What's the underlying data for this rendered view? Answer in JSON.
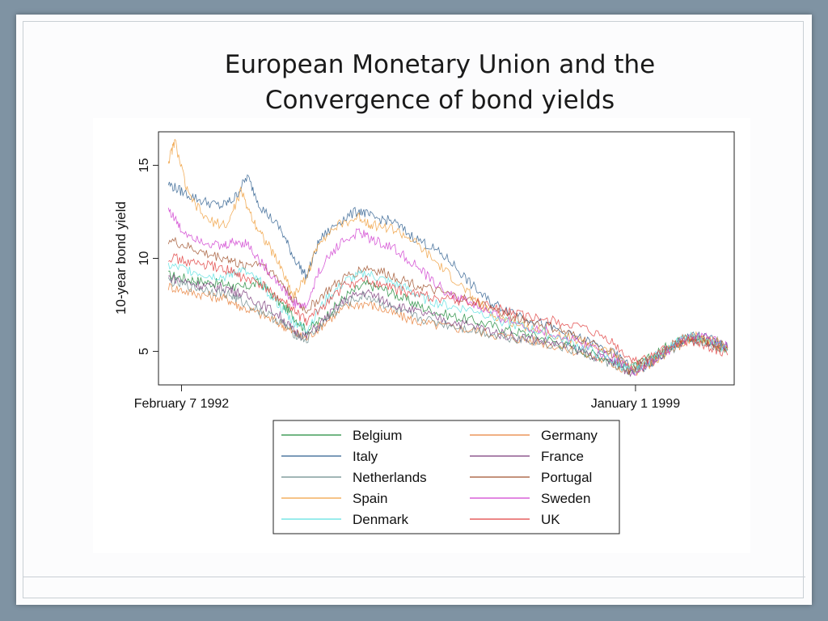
{
  "slide": {
    "title_line1": "European Monetary Union and the",
    "title_line2": "Convergence of bond yields"
  },
  "chart_data": {
    "type": "line",
    "title": "",
    "xlabel": "",
    "ylabel": "10-year bond yield",
    "xlim": [
      1991.75,
      2000.5
    ],
    "ylim": [
      3.2,
      16.8
    ],
    "yticks": [
      5,
      10,
      15
    ],
    "xticks": [
      {
        "label": "February 7 1992",
        "x": 1992.1
      },
      {
        "label": "January 1 1999",
        "x": 1999.0
      }
    ],
    "legend_position": "bottom",
    "grid": false,
    "series": [
      {
        "name": "Belgium",
        "color": "#1f8a3a",
        "x": [
          1991.9,
          1992.2,
          1992.5,
          1992.8,
          1993.0,
          1993.3,
          1993.6,
          1993.8,
          1994.0,
          1994.3,
          1994.6,
          1994.9,
          1995.2,
          1995.5,
          1995.8,
          1996.2,
          1996.6,
          1997.0,
          1997.4,
          1997.8,
          1998.2,
          1998.6,
          1998.9,
          1999.2,
          1999.5,
          1999.8,
          2000.1,
          2000.4
        ],
        "y": [
          9.1,
          8.9,
          8.7,
          8.6,
          8.4,
          8.7,
          7.6,
          6.9,
          6.1,
          6.9,
          8.0,
          8.6,
          8.3,
          7.8,
          7.3,
          6.9,
          6.6,
          6.2,
          5.9,
          5.5,
          5.0,
          4.6,
          4.0,
          4.6,
          5.3,
          5.8,
          5.5,
          5.1
        ]
      },
      {
        "name": "Germany",
        "color": "#e8803a",
        "x": [
          1991.9,
          1992.2,
          1992.5,
          1992.8,
          1993.0,
          1993.3,
          1993.6,
          1993.8,
          1994.0,
          1994.3,
          1994.6,
          1994.9,
          1995.2,
          1995.5,
          1995.8,
          1996.2,
          1996.6,
          1997.0,
          1997.4,
          1997.8,
          1998.2,
          1998.6,
          1998.9,
          1999.2,
          1999.5,
          1999.8,
          2000.1,
          2000.4
        ],
        "y": [
          8.5,
          8.2,
          8.0,
          7.8,
          7.4,
          7.0,
          6.5,
          6.0,
          5.7,
          6.6,
          7.4,
          7.6,
          7.2,
          6.8,
          6.5,
          6.3,
          6.1,
          5.8,
          5.6,
          5.3,
          4.9,
          4.4,
          3.9,
          4.3,
          5.0,
          5.6,
          5.4,
          5.1
        ]
      },
      {
        "name": "Italy",
        "color": "#2f5f8f",
        "x": [
          1991.9,
          1992.1,
          1992.4,
          1992.7,
          1992.9,
          1993.1,
          1993.3,
          1993.6,
          1993.8,
          1994.0,
          1994.2,
          1994.5,
          1994.8,
          1995.0,
          1995.3,
          1995.6,
          1995.9,
          1996.2,
          1996.5,
          1996.8,
          1997.1,
          1997.5,
          1997.9,
          1998.3,
          1998.7,
          1999.0,
          1999.3,
          1999.6,
          1999.9,
          2000.2,
          2000.4
        ],
        "y": [
          14.0,
          13.6,
          13.1,
          12.8,
          13.2,
          14.4,
          12.8,
          11.6,
          10.1,
          9.0,
          11.0,
          12.0,
          12.6,
          12.2,
          12.0,
          11.2,
          10.6,
          9.8,
          8.6,
          7.6,
          7.2,
          6.6,
          6.0,
          5.5,
          4.8,
          3.9,
          4.5,
          5.3,
          5.9,
          5.6,
          5.2
        ]
      },
      {
        "name": "France",
        "color": "#7a3a7a",
        "x": [
          1991.9,
          1992.2,
          1992.5,
          1992.8,
          1993.0,
          1993.3,
          1993.6,
          1993.8,
          1994.0,
          1994.3,
          1994.6,
          1994.9,
          1995.2,
          1995.5,
          1995.8,
          1996.2,
          1996.6,
          1997.0,
          1997.4,
          1997.8,
          1998.2,
          1998.6,
          1998.9,
          1999.2,
          1999.5,
          1999.8,
          2000.1,
          2000.4
        ],
        "y": [
          9.0,
          8.7,
          8.5,
          8.4,
          8.1,
          7.6,
          6.9,
          6.1,
          5.8,
          6.8,
          7.8,
          8.2,
          7.7,
          7.3,
          7.0,
          6.6,
          6.3,
          5.9,
          5.7,
          5.4,
          5.0,
          4.5,
          3.9,
          4.4,
          5.1,
          5.7,
          5.5,
          5.1
        ]
      },
      {
        "name": "Netherlands",
        "color": "#6b8a8a",
        "x": [
          1991.9,
          1992.2,
          1992.5,
          1992.8,
          1993.0,
          1993.3,
          1993.6,
          1993.8,
          1994.0,
          1994.3,
          1994.6,
          1994.9,
          1995.2,
          1995.5,
          1995.8,
          1996.2,
          1996.6,
          1997.0,
          1997.4,
          1997.8,
          1998.2,
          1998.6,
          1998.9,
          1999.2,
          1999.5,
          1999.8,
          2000.1,
          2000.4
        ],
        "y": [
          8.8,
          8.5,
          8.3,
          8.1,
          7.7,
          7.2,
          6.6,
          6.0,
          5.6,
          6.7,
          7.6,
          8.0,
          7.5,
          7.0,
          6.7,
          6.4,
          6.1,
          5.8,
          5.6,
          5.3,
          4.9,
          4.4,
          3.9,
          4.3,
          5.0,
          5.6,
          5.4,
          5.1
        ]
      },
      {
        "name": "Portugal",
        "color": "#a0522d",
        "x": [
          1991.9,
          1992.2,
          1992.5,
          1992.8,
          1993.0,
          1993.3,
          1993.6,
          1993.8,
          1994.0,
          1994.3,
          1994.6,
          1994.9,
          1995.2,
          1995.5,
          1995.8,
          1996.2,
          1996.6,
          1997.0,
          1997.4,
          1997.8,
          1998.2,
          1998.6,
          1998.9,
          1999.2,
          1999.5,
          1999.8,
          2000.1,
          2000.4
        ],
        "y": [
          11.0,
          10.6,
          10.2,
          10.0,
          9.6,
          9.8,
          8.8,
          7.8,
          7.2,
          8.2,
          9.0,
          9.5,
          9.2,
          8.8,
          8.4,
          8.0,
          7.6,
          7.0,
          6.6,
          6.2,
          5.6,
          5.0,
          4.1,
          4.5,
          5.2,
          5.8,
          5.6,
          5.2
        ]
      },
      {
        "name": "Spain",
        "color": "#f0a040",
        "x": [
          1991.9,
          1992.0,
          1992.2,
          1992.5,
          1992.8,
          1993.0,
          1993.2,
          1993.4,
          1993.6,
          1993.8,
          1994.0,
          1994.2,
          1994.5,
          1994.8,
          1995.0,
          1995.3,
          1995.6,
          1995.9,
          1996.2,
          1996.5,
          1996.8,
          1997.1,
          1997.5,
          1997.9,
          1998.3,
          1998.7,
          1999.0,
          1999.3,
          1999.6,
          1999.9,
          2000.2,
          2000.4
        ],
        "y": [
          15.2,
          16.3,
          13.4,
          12.0,
          11.8,
          13.6,
          12.0,
          10.8,
          9.6,
          8.0,
          9.0,
          11.0,
          11.8,
          12.2,
          11.8,
          11.6,
          11.0,
          10.0,
          9.0,
          8.0,
          7.0,
          6.6,
          6.2,
          5.8,
          5.4,
          4.8,
          3.9,
          4.5,
          5.3,
          5.8,
          5.6,
          5.1
        ]
      },
      {
        "name": "Sweden",
        "color": "#d040d0",
        "x": [
          1991.9,
          1992.1,
          1992.4,
          1992.7,
          1992.9,
          1993.1,
          1993.3,
          1993.6,
          1993.8,
          1994.0,
          1994.2,
          1994.5,
          1994.8,
          1995.0,
          1995.3,
          1995.6,
          1995.9,
          1996.2,
          1996.5,
          1996.8,
          1997.1,
          1997.5,
          1997.9,
          1998.3,
          1998.7,
          1999.0,
          1999.3,
          1999.6,
          1999.9,
          2000.2,
          2000.4
        ],
        "y": [
          12.7,
          11.5,
          11.0,
          10.6,
          10.9,
          10.8,
          9.8,
          8.6,
          7.6,
          7.4,
          9.4,
          10.8,
          11.4,
          11.0,
          10.6,
          9.8,
          8.8,
          8.0,
          7.6,
          7.0,
          6.6,
          6.2,
          5.8,
          5.3,
          4.6,
          3.9,
          4.5,
          5.3,
          5.9,
          5.6,
          5.2
        ]
      },
      {
        "name": "Denmark",
        "color": "#5de0e0",
        "x": [
          1991.9,
          1992.2,
          1992.5,
          1992.8,
          1993.0,
          1993.3,
          1993.6,
          1993.8,
          1994.0,
          1994.3,
          1994.6,
          1994.9,
          1995.2,
          1995.5,
          1995.8,
          1996.2,
          1996.6,
          1997.0,
          1997.4,
          1997.8,
          1998.2,
          1998.6,
          1998.9,
          1999.2,
          1999.5,
          1999.8,
          2000.1,
          2000.4
        ],
        "y": [
          9.6,
          9.4,
          9.1,
          9.0,
          9.4,
          8.7,
          7.4,
          6.6,
          6.2,
          7.8,
          8.8,
          9.2,
          8.8,
          8.4,
          7.8,
          7.4,
          7.2,
          6.6,
          6.2,
          5.8,
          5.2,
          4.6,
          4.0,
          4.5,
          5.2,
          5.8,
          5.5,
          5.1
        ]
      },
      {
        "name": "UK",
        "color": "#e04040",
        "x": [
          1991.9,
          1992.2,
          1992.5,
          1992.8,
          1993.0,
          1993.3,
          1993.6,
          1993.8,
          1994.0,
          1994.3,
          1994.6,
          1994.9,
          1995.2,
          1995.5,
          1995.8,
          1996.2,
          1996.6,
          1997.0,
          1997.4,
          1997.8,
          1998.2,
          1998.6,
          1998.9,
          1999.2,
          1999.5,
          1999.8,
          2000.1,
          2000.4
        ],
        "y": [
          10.1,
          9.8,
          9.6,
          9.4,
          9.0,
          8.6,
          7.8,
          7.2,
          6.6,
          7.6,
          8.6,
          8.8,
          8.5,
          8.2,
          8.0,
          7.8,
          7.6,
          7.2,
          6.8,
          6.6,
          6.2,
          5.6,
          4.6,
          4.6,
          5.2,
          5.6,
          5.3,
          4.8
        ]
      }
    ]
  }
}
